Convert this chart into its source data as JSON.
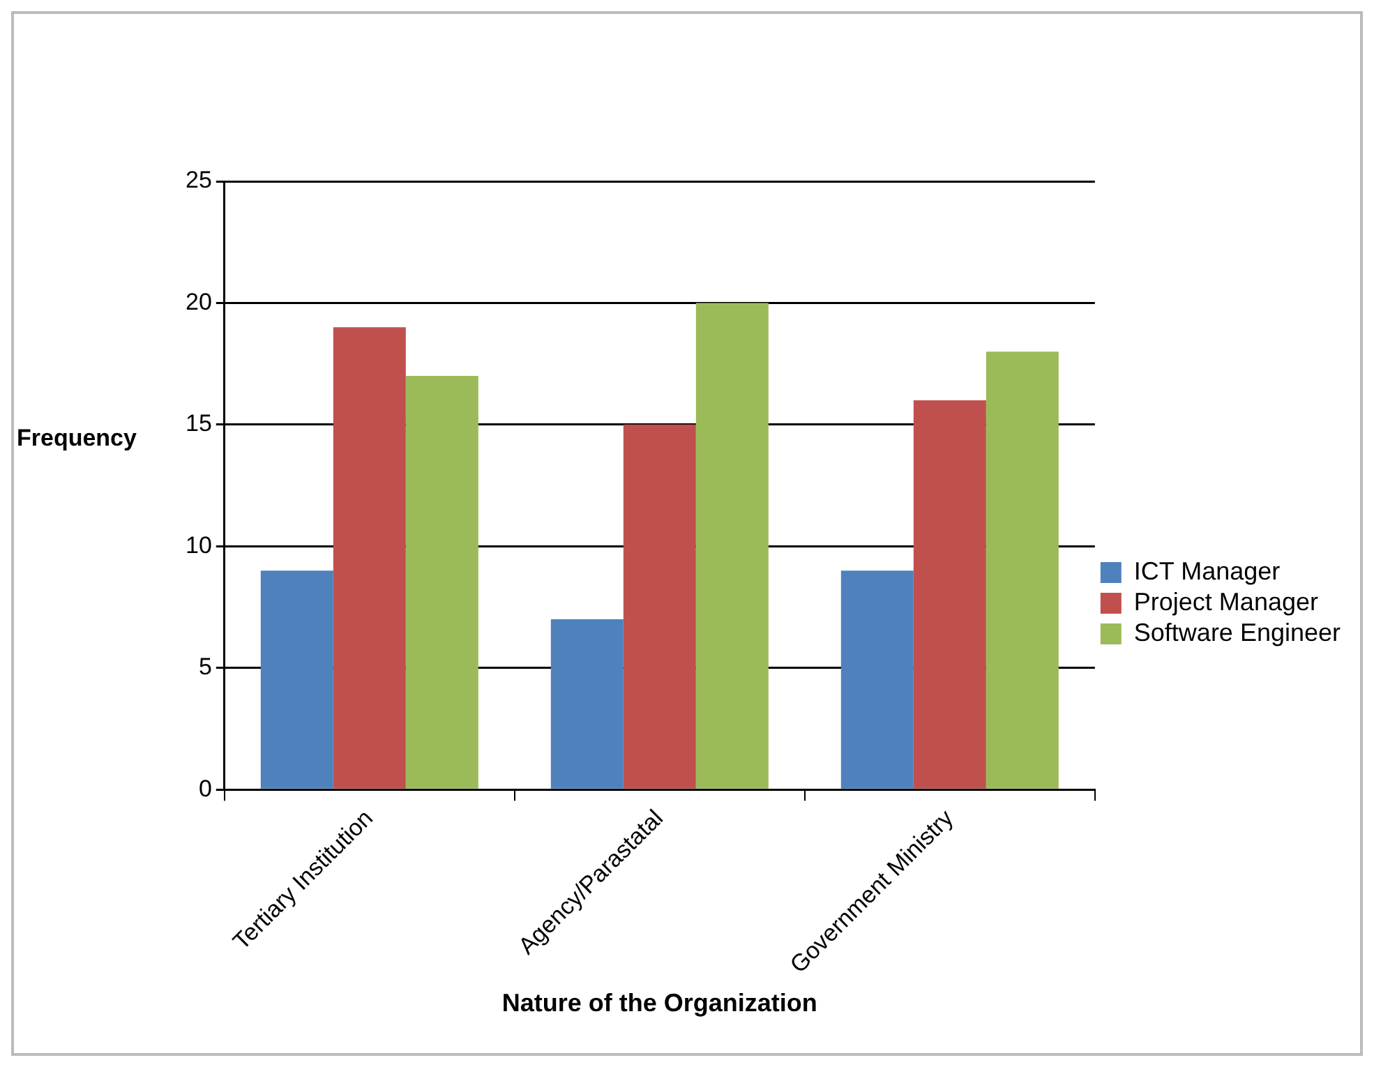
{
  "chart_data": {
    "type": "bar",
    "xlabel": "Nature of the Organization",
    "ylabel": "Frequency",
    "categories": [
      "Tertiary Institution",
      "Agency/Parastatal",
      "Government Ministry"
    ],
    "series": [
      {
        "name": "ICT Manager",
        "color": "#4f81bd",
        "values": [
          9,
          7,
          9
        ]
      },
      {
        "name": "Project Manager",
        "color": "#c0504d",
        "values": [
          19,
          15,
          16
        ]
      },
      {
        "name": "Software Engineer",
        "color": "#9bbb59",
        "values": [
          17,
          20,
          18
        ]
      }
    ],
    "ylim": [
      0,
      25
    ],
    "yticks": [
      0,
      5,
      10,
      15,
      20,
      25
    ],
    "grid": "y",
    "legend": "right"
  }
}
